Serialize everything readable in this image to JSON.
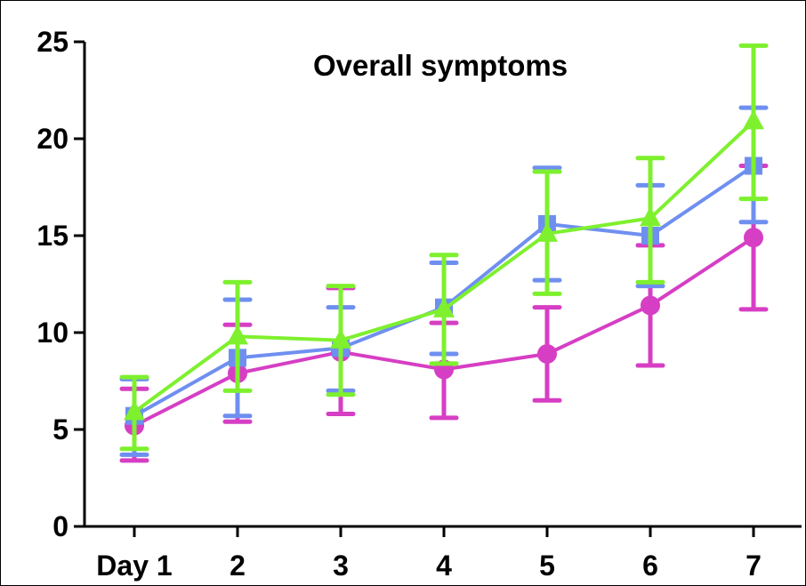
{
  "chart_data": {
    "type": "line",
    "title": "Overall symptoms",
    "xlabel": "",
    "ylabel": "",
    "categories": [
      "Day 1",
      "2",
      "3",
      "4",
      "5",
      "6",
      "7"
    ],
    "ylim": [
      0,
      25
    ],
    "yticks": [
      0,
      5,
      10,
      15,
      20,
      25
    ],
    "grid": false,
    "legend": "none",
    "error_bars": true,
    "series": [
      {
        "color": "#d63ec4",
        "marker": "circle",
        "values": [
          5.2,
          7.9,
          9.0,
          8.1,
          8.9,
          11.4,
          14.9
        ],
        "err_low": [
          3.4,
          5.4,
          5.8,
          5.6,
          6.5,
          8.3,
          11.2
        ],
        "err_high": [
          7.1,
          10.4,
          12.3,
          10.5,
          11.3,
          14.5,
          18.6
        ]
      },
      {
        "color": "#6f8ff0",
        "marker": "square",
        "values": [
          5.7,
          8.7,
          9.2,
          11.3,
          15.6,
          15.0,
          18.6
        ],
        "err_low": [
          3.7,
          5.7,
          7.0,
          8.9,
          12.7,
          12.4,
          15.7
        ],
        "err_high": [
          7.6,
          11.7,
          11.3,
          13.6,
          18.5,
          17.6,
          21.6
        ]
      },
      {
        "color": "#7ef02e",
        "marker": "triangle",
        "values": [
          5.9,
          9.8,
          9.6,
          11.2,
          15.1,
          15.9,
          20.9
        ],
        "err_low": [
          4.0,
          7.0,
          6.8,
          8.4,
          12.0,
          12.6,
          16.9
        ],
        "err_high": [
          7.7,
          12.6,
          12.4,
          14.0,
          18.3,
          19.0,
          24.8
        ]
      }
    ]
  }
}
